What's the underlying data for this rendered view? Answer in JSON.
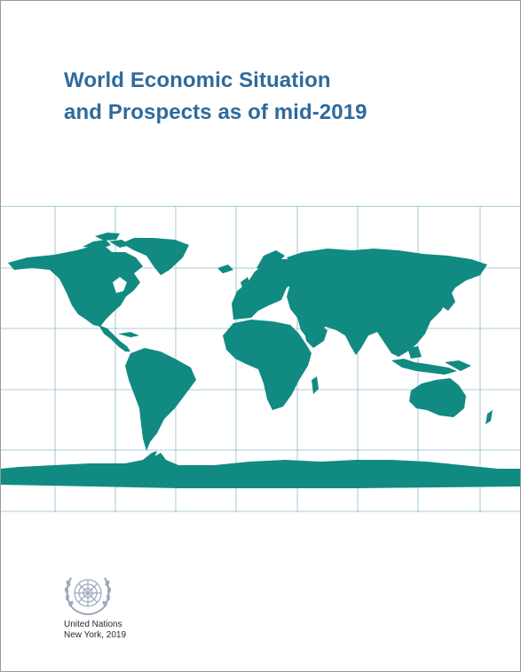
{
  "cover": {
    "title_line_1": "World Economic Situation",
    "title_line_2": "and Prospects as of mid-2019",
    "publisher_name": "United Nations",
    "publisher_place_year": "New York, 2019"
  },
  "colors": {
    "title": "#2f6a9c",
    "land": "#118a82",
    "grid": "#8fbcc6",
    "emblem": "#9aa9bd"
  },
  "icons": {
    "emblem": "un-emblem-icon",
    "map": "world-map"
  }
}
